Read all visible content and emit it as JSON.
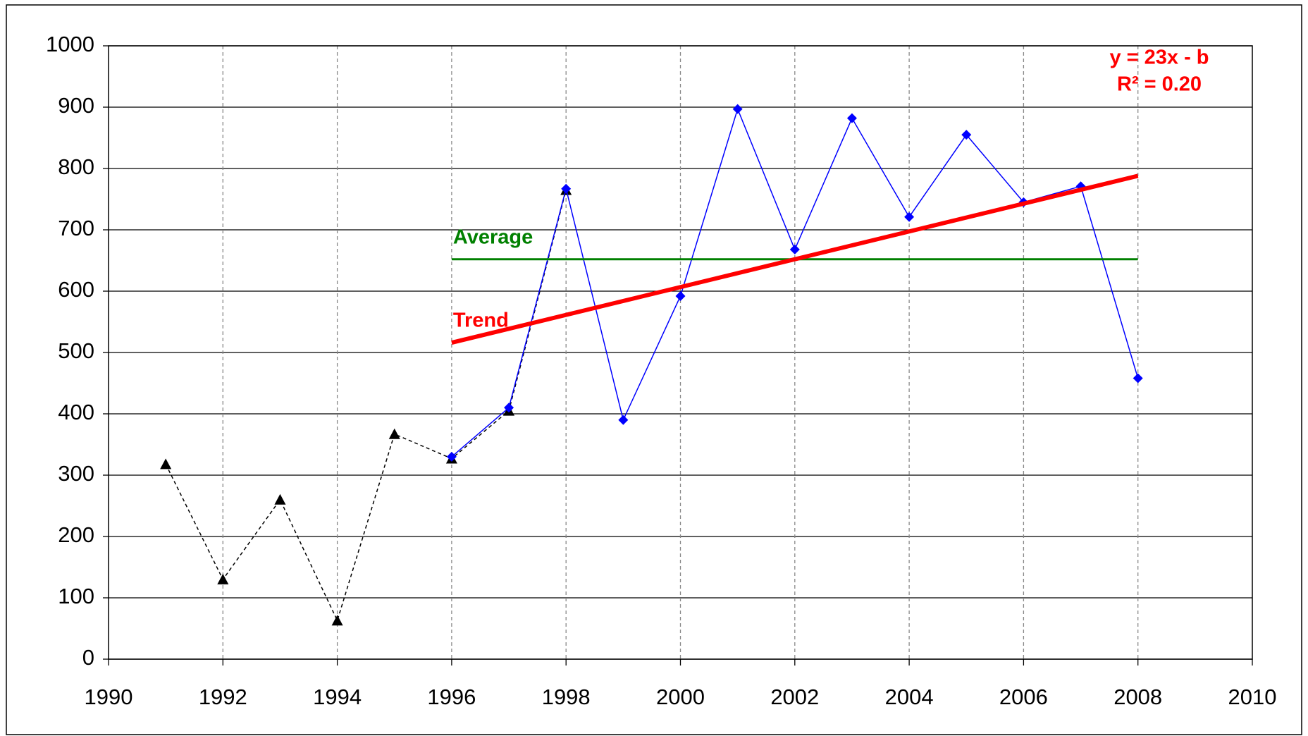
{
  "chart_data": {
    "type": "line",
    "series": [
      {
        "color": "#000000",
        "marker": "triangle",
        "dash": true,
        "x": [
          1991,
          1992,
          1993,
          1994,
          1995,
          1996,
          1997,
          1998
        ],
        "values": [
          318,
          130,
          260,
          63,
          367,
          327,
          405,
          765
        ]
      },
      {
        "color": "#0000ff",
        "marker": "diamond",
        "dash": false,
        "x": [
          1996,
          1997,
          1998,
          1999,
          2000,
          2001,
          2002,
          2003,
          2004,
          2005,
          2006,
          2007,
          2008
        ],
        "values": [
          330,
          410,
          767,
          390,
          592,
          897,
          668,
          882,
          721,
          855,
          745,
          771,
          458
        ]
      },
      {
        "name": "Average",
        "color": "#008000",
        "marker": "none",
        "dash": false,
        "width": 3,
        "x": [
          1996,
          2008
        ],
        "values": [
          652,
          652
        ]
      },
      {
        "name": "Trend",
        "color": "#ff0000",
        "marker": "none",
        "dash": false,
        "width": 6,
        "x": [
          1996,
          2008
        ],
        "values": [
          516,
          788
        ]
      }
    ],
    "annotations": [
      "y = 23x - b",
      "R² = 0.20"
    ],
    "xlim": [
      1990,
      2010
    ],
    "xticks": [
      1990,
      1992,
      1994,
      1996,
      1998,
      2000,
      2002,
      2004,
      2006,
      2008,
      2010
    ],
    "ylim": [
      0,
      1000
    ],
    "yticks": [
      0,
      100,
      200,
      300,
      400,
      500,
      600,
      700,
      800,
      900,
      1000
    ],
    "grid": true
  }
}
